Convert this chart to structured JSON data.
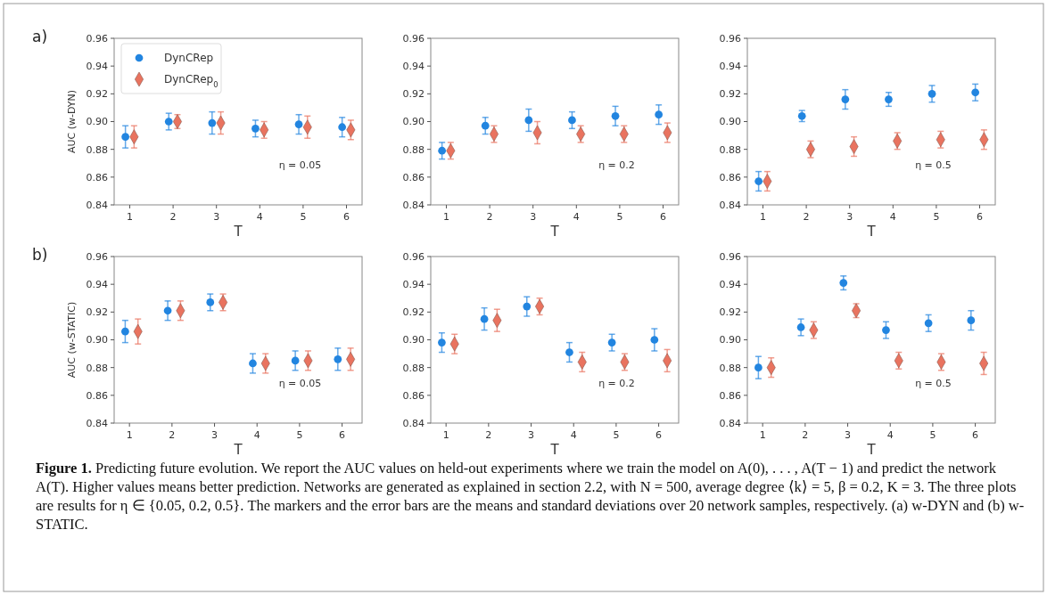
{
  "chart_data": [
    {
      "type": "scatter",
      "xlabel": "T",
      "ylabel": "AUC (w-DYN)",
      "xlim": [
        0.64,
        6.36
      ],
      "ylim": [
        0.84,
        0.96
      ],
      "xticks": [
        1,
        2,
        3,
        4,
        5,
        6
      ],
      "yticks": [
        {
          "value": 0.84,
          "label": "0.84"
        },
        {
          "value": 0.86,
          "label": "0.86"
        },
        {
          "value": 0.88,
          "label": "0.88"
        },
        {
          "value": 0.9,
          "label": "0.90"
        },
        {
          "value": 0.92,
          "label": "0.92"
        },
        {
          "value": 0.94,
          "label": "0.94"
        },
        {
          "value": 0.96,
          "label": "0.96"
        }
      ],
      "grid": false,
      "legend": "top left",
      "annotations": [
        "η = 0.05",
        "a)"
      ],
      "series": [
        {
          "name": "DynCRep",
          "color": "#2285e0",
          "marker": "circle",
          "x": [
            0.9,
            1.9,
            2.9,
            3.9,
            4.9,
            5.9
          ],
          "values": [
            0.889,
            0.9,
            0.899,
            0.895,
            0.898,
            0.896
          ],
          "errors": [
            0.008,
            0.006,
            0.008,
            0.006,
            0.007,
            0.007
          ]
        },
        {
          "name": "DynCRep$_{0}$",
          "color": "#e9735f",
          "marker": "diamond",
          "x": [
            1.1,
            2.1,
            3.1,
            4.1,
            5.1,
            6.1
          ],
          "values": [
            0.889,
            0.9,
            0.899,
            0.894,
            0.896,
            0.894
          ],
          "errors": [
            0.008,
            0.005,
            0.008,
            0.006,
            0.008,
            0.007
          ]
        }
      ]
    },
    {
      "type": "scatter",
      "xlabel": "T",
      "xlim": [
        0.64,
        6.36
      ],
      "ylim": [
        0.84,
        0.96
      ],
      "xticks": [
        1,
        2,
        3,
        4,
        5,
        6
      ],
      "yticks": [
        {
          "value": 0.84,
          "label": "0.84"
        },
        {
          "value": 0.86,
          "label": "0.86"
        },
        {
          "value": 0.88,
          "label": "0.88"
        },
        {
          "value": 0.9,
          "label": "0.90"
        },
        {
          "value": 0.92,
          "label": "0.92"
        },
        {
          "value": 0.94,
          "label": "0.94"
        },
        {
          "value": 0.96,
          "label": "0.96"
        }
      ],
      "grid": false,
      "annotations": [
        "η = 0.2"
      ],
      "series": [
        {
          "color": "#2285e0",
          "marker": "circle",
          "x": [
            0.9,
            1.9,
            2.9,
            3.9,
            4.9,
            5.9
          ],
          "values": [
            0.879,
            0.897,
            0.901,
            0.901,
            0.904,
            0.905
          ],
          "errors": [
            0.006,
            0.006,
            0.008,
            0.006,
            0.007,
            0.007
          ]
        },
        {
          "color": "#e9735f",
          "marker": "diamond",
          "x": [
            1.1,
            2.1,
            3.1,
            4.1,
            5.1,
            6.1
          ],
          "values": [
            0.879,
            0.891,
            0.892,
            0.891,
            0.891,
            0.892
          ],
          "errors": [
            0.006,
            0.006,
            0.008,
            0.006,
            0.006,
            0.007
          ]
        }
      ]
    },
    {
      "type": "scatter",
      "xlabel": "T",
      "xlim": [
        0.64,
        6.36
      ],
      "ylim": [
        0.84,
        0.96
      ],
      "xticks": [
        1,
        2,
        3,
        4,
        5,
        6
      ],
      "yticks": [
        {
          "value": 0.84,
          "label": "0.84"
        },
        {
          "value": 0.86,
          "label": "0.86"
        },
        {
          "value": 0.88,
          "label": "0.88"
        },
        {
          "value": 0.9,
          "label": "0.90"
        },
        {
          "value": 0.92,
          "label": "0.92"
        },
        {
          "value": 0.94,
          "label": "0.94"
        },
        {
          "value": 0.96,
          "label": "0.96"
        }
      ],
      "grid": false,
      "annotations": [
        "η = 0.5"
      ],
      "series": [
        {
          "color": "#2285e0",
          "marker": "circle",
          "x": [
            0.9,
            1.9,
            2.9,
            3.9,
            4.9,
            5.9
          ],
          "values": [
            0.857,
            0.904,
            0.916,
            0.916,
            0.92,
            0.921
          ],
          "errors": [
            0.007,
            0.004,
            0.007,
            0.005,
            0.006,
            0.006
          ]
        },
        {
          "color": "#e9735f",
          "marker": "diamond",
          "x": [
            1.1,
            2.1,
            3.1,
            4.1,
            5.1,
            6.1
          ],
          "values": [
            0.857,
            0.88,
            0.882,
            0.886,
            0.887,
            0.887
          ],
          "errors": [
            0.007,
            0.006,
            0.007,
            0.006,
            0.006,
            0.007
          ]
        }
      ]
    },
    {
      "type": "scatter",
      "xlabel": "T",
      "ylabel": "AUC (w-STATIC)",
      "xlim": [
        0.64,
        6.47
      ],
      "ylim": [
        0.84,
        0.96
      ],
      "xticks": [
        1,
        2,
        3,
        4,
        5,
        6
      ],
      "yticks": [
        {
          "value": 0.84,
          "label": "0.84"
        },
        {
          "value": 0.86,
          "label": "0.86"
        },
        {
          "value": 0.88,
          "label": "0.88"
        },
        {
          "value": 0.9,
          "label": "0.90"
        },
        {
          "value": 0.92,
          "label": "0.92"
        },
        {
          "value": 0.94,
          "label": "0.94"
        },
        {
          "value": 0.96,
          "label": "0.96"
        }
      ],
      "grid": false,
      "annotations": [
        "η = 0.05",
        "b)"
      ],
      "series": [
        {
          "color": "#2285e0",
          "marker": "circle",
          "x": [
            0.9,
            1.9,
            2.9,
            3.9,
            4.9,
            5.9
          ],
          "values": [
            0.906,
            0.921,
            0.927,
            0.883,
            0.885,
            0.886
          ],
          "errors": [
            0.008,
            0.007,
            0.006,
            0.007,
            0.007,
            0.008
          ]
        },
        {
          "color": "#e9735f",
          "marker": "diamond",
          "x": [
            1.2,
            2.2,
            3.2,
            4.2,
            5.2,
            6.2
          ],
          "values": [
            0.906,
            0.921,
            0.927,
            0.883,
            0.885,
            0.886
          ],
          "errors": [
            0.009,
            0.007,
            0.006,
            0.007,
            0.007,
            0.008
          ]
        }
      ]
    },
    {
      "type": "scatter",
      "xlabel": "T",
      "xlim": [
        0.64,
        6.47
      ],
      "ylim": [
        0.84,
        0.96
      ],
      "xticks": [
        1,
        2,
        3,
        4,
        5,
        6
      ],
      "yticks": [
        {
          "value": 0.84,
          "label": "0.84"
        },
        {
          "value": 0.86,
          "label": "0.86"
        },
        {
          "value": 0.88,
          "label": "0.88"
        },
        {
          "value": 0.9,
          "label": "0.90"
        },
        {
          "value": 0.92,
          "label": "0.92"
        },
        {
          "value": 0.94,
          "label": "0.94"
        },
        {
          "value": 0.96,
          "label": "0.96"
        }
      ],
      "grid": false,
      "annotations": [
        "η = 0.2"
      ],
      "series": [
        {
          "color": "#2285e0",
          "marker": "circle",
          "x": [
            0.9,
            1.9,
            2.9,
            3.9,
            4.9,
            5.9
          ],
          "values": [
            0.898,
            0.915,
            0.924,
            0.891,
            0.898,
            0.9
          ],
          "errors": [
            0.007,
            0.008,
            0.007,
            0.007,
            0.006,
            0.008
          ]
        },
        {
          "color": "#e9735f",
          "marker": "diamond",
          "x": [
            1.2,
            2.2,
            3.2,
            4.2,
            5.2,
            6.2
          ],
          "values": [
            0.897,
            0.914,
            0.924,
            0.884,
            0.884,
            0.885
          ],
          "errors": [
            0.007,
            0.008,
            0.006,
            0.007,
            0.006,
            0.008
          ]
        }
      ]
    },
    {
      "type": "scatter",
      "xlabel": "T",
      "xlim": [
        0.64,
        6.47
      ],
      "ylim": [
        0.84,
        0.96
      ],
      "xticks": [
        1,
        2,
        3,
        4,
        5,
        6
      ],
      "yticks": [
        {
          "value": 0.84,
          "label": "0.84"
        },
        {
          "value": 0.86,
          "label": "0.86"
        },
        {
          "value": 0.88,
          "label": "0.88"
        },
        {
          "value": 0.9,
          "label": "0.90"
        },
        {
          "value": 0.92,
          "label": "0.92"
        },
        {
          "value": 0.94,
          "label": "0.94"
        },
        {
          "value": 0.96,
          "label": "0.96"
        }
      ],
      "grid": false,
      "annotations": [
        "η = 0.5",
        "Figure 1. Predicting future evolution. We report the AUC values on held-out experiments where we train the model on A(0), . . . , A(T − 1) and predict the network A(T). Higher values means better prediction. Networks are generated as explained in section 2.2, with N = 500, average degree ⟨k⟩ = 5, β = 0.2, K = 3. The three plots are results for η ∈ {0.05, 0.2, 0.5}. The markers and the error bars are the means and standard deviations over 20 network samples, respectively. (a) w-DYN and (b) w-STATIC."
      ],
      "series": [
        {
          "color": "#2285e0",
          "marker": "circle",
          "x": [
            0.9,
            1.9,
            2.9,
            3.9,
            4.9,
            5.9
          ],
          "values": [
            0.88,
            0.909,
            0.941,
            0.907,
            0.912,
            0.914
          ],
          "errors": [
            0.008,
            0.006,
            0.005,
            0.006,
            0.006,
            0.007
          ]
        },
        {
          "color": "#e9735f",
          "marker": "diamond",
          "x": [
            1.2,
            2.2,
            3.2,
            4.2,
            5.2,
            6.2
          ],
          "values": [
            0.88,
            0.907,
            0.921,
            0.885,
            0.884,
            0.883
          ],
          "errors": [
            0.007,
            0.006,
            0.005,
            0.006,
            0.006,
            0.008
          ]
        }
      ]
    }
  ]
}
